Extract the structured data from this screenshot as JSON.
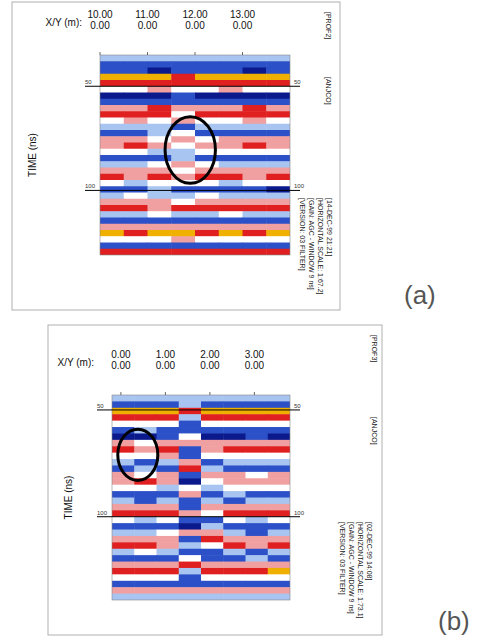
{
  "chart_data": [
    {
      "type": "heatmap",
      "title": "[PROF2]",
      "subtitle": "[ANJCO]",
      "info": [
        "[VERSION: 03 FILTER]",
        "[GAIN: AGC - WINDOW 9 ns]",
        "[HORIZONTAL SCALE: 1:67.2]",
        "[14-DEC-99 21:21]"
      ],
      "panel_label": "(a)",
      "x_label": "X/Y (m):",
      "y_label": "TIME (ns)",
      "xlim": [
        10,
        14
      ],
      "xticks": [
        {
          "value": 10,
          "label": "10.00"
        },
        {
          "value": 11,
          "label": "11.00"
        },
        {
          "value": 12,
          "label": "12.00"
        },
        {
          "value": 13,
          "label": "13.00"
        }
      ],
      "y_coordinates": [
        "0.00",
        "0.00",
        "0.00",
        "0.00"
      ],
      "ylim": [
        35,
        131
      ],
      "yticks": [
        50,
        100
      ],
      "grid": true,
      "color_range": [
        -3,
        3
      ],
      "cells": [
        [
          -1,
          -1,
          -1,
          -1,
          -1,
          -1,
          -1,
          -1
        ],
        [
          -2,
          -2,
          -2,
          -2,
          -2,
          -2,
          -2,
          -2
        ],
        [
          -2,
          -2,
          -3,
          -2,
          -2,
          -2,
          -3,
          -2
        ],
        [
          3,
          3,
          3,
          2,
          3,
          3,
          3,
          3
        ],
        [
          2,
          2,
          2,
          2,
          2,
          2,
          2,
          2
        ],
        [
          0,
          0,
          1,
          0,
          0,
          1,
          0,
          0
        ],
        [
          -3,
          -3,
          -3,
          -2,
          -3,
          -3,
          -3,
          -3
        ],
        [
          -2,
          -2,
          -2,
          -2,
          -2,
          -2,
          -2,
          -2
        ],
        [
          1,
          1,
          2,
          1,
          1,
          1,
          2,
          1
        ],
        [
          2,
          2,
          2,
          0,
          2,
          2,
          2,
          2
        ],
        [
          0,
          1,
          0,
          1,
          0,
          0,
          1,
          0
        ],
        [
          -1,
          -1,
          -1,
          -2,
          -1,
          -1,
          -1,
          -1
        ],
        [
          -2,
          -2,
          -1,
          0,
          -2,
          -2,
          -2,
          -2
        ],
        [
          1,
          1,
          0,
          1,
          0,
          1,
          1,
          1
        ],
        [
          1,
          2,
          1,
          0,
          1,
          1,
          2,
          1
        ],
        [
          0,
          0,
          -1,
          -1,
          0,
          0,
          0,
          0
        ],
        [
          -2,
          -2,
          -2,
          -1,
          -2,
          -2,
          -2,
          -2
        ],
        [
          -1,
          -1,
          0,
          1,
          0,
          -1,
          -1,
          -1
        ],
        [
          1,
          1,
          1,
          0,
          1,
          1,
          1,
          1
        ],
        [
          2,
          1,
          2,
          1,
          2,
          2,
          1,
          2
        ],
        [
          0,
          -1,
          0,
          0,
          0,
          -1,
          0,
          0
        ],
        [
          -2,
          -2,
          -1,
          -2,
          -2,
          -2,
          -2,
          -3
        ],
        [
          -1,
          0,
          -1,
          -1,
          0,
          -1,
          -1,
          -1
        ],
        [
          1,
          1,
          1,
          0,
          1,
          1,
          1,
          1
        ],
        [
          2,
          2,
          1,
          2,
          2,
          2,
          2,
          2
        ],
        [
          -1,
          -1,
          0,
          -1,
          -1,
          0,
          -1,
          -1
        ],
        [
          -2,
          -2,
          -2,
          -2,
          -2,
          -2,
          -2,
          -2
        ],
        [
          1,
          1,
          1,
          1,
          1,
          1,
          1,
          1
        ],
        [
          3,
          2,
          3,
          3,
          2,
          3,
          2,
          3
        ],
        [
          0,
          0,
          0,
          1,
          0,
          0,
          0,
          0
        ],
        [
          -2,
          -2,
          -2,
          -2,
          -2,
          -2,
          -2,
          -2
        ],
        [
          2,
          2,
          2,
          2,
          2,
          2,
          2,
          2
        ]
      ],
      "annotations": [
        {
          "type": "ellipse",
          "x": 11.9,
          "y": 80.6,
          "x_radius": 0.53,
          "y_radius": 16
        }
      ]
    },
    {
      "type": "heatmap",
      "title": "[PROF3]",
      "subtitle": "[ANJCO]",
      "info": [
        "[VERSION: 03 FILTER]",
        "[GAIN: AGC - WINDOW 9 ns]",
        "[HORIZONTAL SCALE: 1:73.1]",
        "[02-DEC-99 14:08]"
      ],
      "panel_label": "(b)",
      "x_label": "X/Y (m):",
      "y_label": "TIME (ns)",
      "xlim": [
        -0.2,
        3.8
      ],
      "xticks": [
        {
          "value": 0,
          "label": "0.00"
        },
        {
          "value": 1,
          "label": "1.00"
        },
        {
          "value": 2,
          "label": "2.00"
        },
        {
          "value": 3,
          "label": "3.00"
        }
      ],
      "y_coordinates": [
        "0.00",
        "0.00",
        "0.00",
        "0.00"
      ],
      "ylim": [
        43,
        139
      ],
      "yticks": [
        50,
        100
      ],
      "grid": true,
      "color_range": [
        -3,
        3
      ],
      "cells": [
        [
          -1,
          -1,
          -1,
          -1,
          -1,
          -1,
          -1,
          -1
        ],
        [
          -2,
          -2,
          -2,
          -1,
          -2,
          -2,
          -2,
          -2
        ],
        [
          3,
          3,
          3,
          2,
          3,
          3,
          3,
          3
        ],
        [
          2,
          2,
          2,
          -1,
          2,
          2,
          2,
          2
        ],
        [
          0,
          0,
          0,
          -2,
          0,
          0,
          0,
          0
        ],
        [
          -2,
          -1,
          -2,
          -2,
          -2,
          -2,
          -2,
          -2
        ],
        [
          -3,
          -3,
          -2,
          0,
          -3,
          -3,
          -2,
          -3
        ],
        [
          1,
          0,
          1,
          1,
          1,
          1,
          1,
          1
        ],
        [
          2,
          1,
          2,
          -2,
          1,
          2,
          2,
          2
        ],
        [
          0,
          0,
          1,
          -2,
          0,
          0,
          0,
          0
        ],
        [
          -1,
          -2,
          -1,
          1,
          -2,
          -1,
          -1,
          -1
        ],
        [
          -2,
          -1,
          -2,
          2,
          -1,
          -2,
          -2,
          -2
        ],
        [
          1,
          0,
          1,
          -2,
          1,
          1,
          0,
          1
        ],
        [
          1,
          2,
          1,
          -3,
          0,
          1,
          1,
          1
        ],
        [
          0,
          0,
          -1,
          0,
          -1,
          0,
          0,
          0
        ],
        [
          -2,
          -2,
          -2,
          1,
          -2,
          -1,
          -2,
          -2
        ],
        [
          -1,
          -2,
          -1,
          -2,
          -1,
          -2,
          -1,
          -1
        ],
        [
          1,
          1,
          1,
          -2,
          1,
          1,
          1,
          1
        ],
        [
          2,
          2,
          2,
          1,
          0,
          2,
          2,
          2
        ],
        [
          0,
          -1,
          0,
          -2,
          -2,
          0,
          -1,
          0
        ],
        [
          -2,
          -2,
          -2,
          -3,
          -1,
          -2,
          -2,
          -2
        ],
        [
          -1,
          -1,
          0,
          1,
          1,
          -1,
          -2,
          -1
        ],
        [
          1,
          1,
          1,
          -2,
          2,
          1,
          1,
          1
        ],
        [
          2,
          2,
          1,
          -1,
          0,
          2,
          1,
          2
        ],
        [
          -1,
          0,
          -1,
          -2,
          -2,
          -1,
          -2,
          -1
        ],
        [
          -2,
          -2,
          -2,
          0,
          -2,
          -2,
          -1,
          -2
        ],
        [
          1,
          1,
          1,
          2,
          1,
          1,
          1,
          1
        ],
        [
          2,
          2,
          2,
          -1,
          2,
          2,
          2,
          3
        ],
        [
          0,
          0,
          0,
          -2,
          0,
          0,
          0,
          0
        ],
        [
          -2,
          -2,
          -2,
          -2,
          -2,
          -2,
          -2,
          -2
        ],
        [
          1,
          1,
          1,
          1,
          1,
          1,
          1,
          1
        ],
        [
          -1,
          -1,
          -1,
          -1,
          -1,
          -1,
          -1,
          -1
        ]
      ],
      "annotations": [
        {
          "type": "ellipse",
          "x": 0.38,
          "y": 71,
          "x_radius": 0.45,
          "y_radius": 12
        }
      ]
    }
  ]
}
